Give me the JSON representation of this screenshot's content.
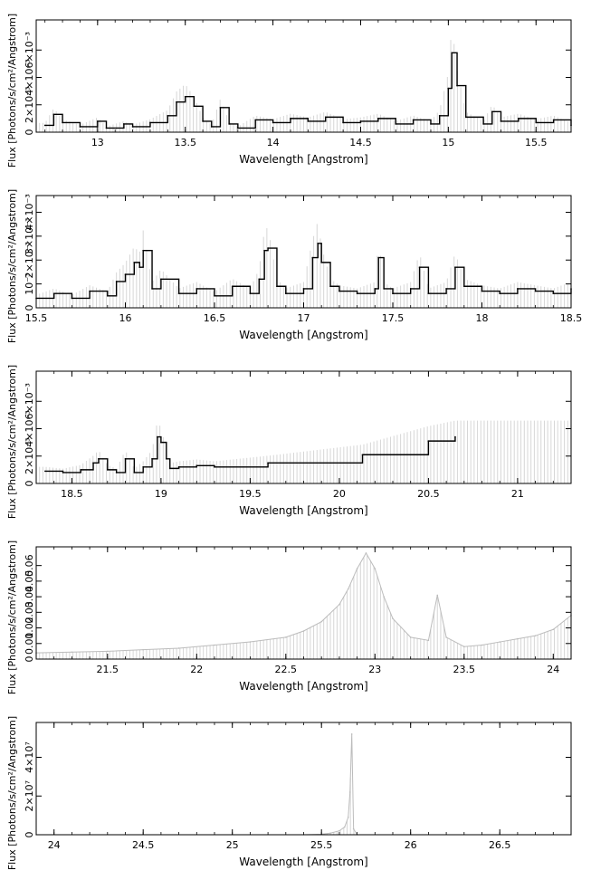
{
  "chart_data": [
    {
      "type": "line",
      "xlabel": "Wavelength [Angstrom]",
      "ylabel": "Flux [Photons/s/cm²/Angstrom]",
      "xlim": [
        12.65,
        15.7
      ],
      "ylim": [
        0,
        0.0082
      ],
      "xticks": [
        13,
        13.5,
        14,
        14.5,
        15,
        15.5
      ],
      "xtick_labels": [
        "13",
        "13.5",
        "14",
        "14.5",
        "15",
        "15.5"
      ],
      "yticks": [
        0,
        0.002,
        0.004,
        0.006
      ],
      "ytick_labels": [
        "0",
        "2×10⁻³",
        "4×10⁻³",
        "6×10⁻³"
      ],
      "series": [
        {
          "x": [
            12.7,
            12.75,
            12.8,
            12.9,
            13.0,
            13.05,
            13.15,
            13.2,
            13.3,
            13.4,
            13.45,
            13.5,
            13.55,
            13.6,
            13.65,
            13.7,
            13.75,
            13.8,
            13.9,
            14.0,
            14.1,
            14.2,
            14.3,
            14.4,
            14.5,
            14.6,
            14.7,
            14.8,
            14.9,
            14.95,
            15.0,
            15.02,
            15.05,
            15.1,
            15.2,
            15.25,
            15.3,
            15.4,
            15.5,
            15.6,
            15.7
          ],
          "y": [
            0.0005,
            0.0013,
            0.0007,
            0.0004,
            0.0008,
            0.0003,
            0.0006,
            0.0004,
            0.0007,
            0.0012,
            0.0022,
            0.0026,
            0.0019,
            0.0008,
            0.0004,
            0.0018,
            0.0006,
            0.0003,
            0.0009,
            0.0007,
            0.001,
            0.0008,
            0.0011,
            0.0007,
            0.0008,
            0.001,
            0.0006,
            0.0009,
            0.0006,
            0.0012,
            0.0032,
            0.0058,
            0.0034,
            0.0011,
            0.0006,
            0.0015,
            0.0008,
            0.001,
            0.0007,
            0.0009,
            0.0005
          ]
        }
      ]
    },
    {
      "type": "line",
      "xlabel": "Wavelength [Angstrom]",
      "ylabel": "Flux [Photons/s/cm²/Angstrom]",
      "xlim": [
        15.5,
        18.5
      ],
      "ylim": [
        0,
        0.0047
      ],
      "xticks": [
        15.5,
        16,
        16.5,
        17,
        17.5,
        18,
        18.5
      ],
      "xtick_labels": [
        "15.5",
        "16",
        "16.5",
        "17",
        "17.5",
        "18",
        "18.5"
      ],
      "yticks": [
        0,
        0.001,
        0.002,
        0.003,
        0.004
      ],
      "ytick_labels": [
        "0",
        "10⁻³",
        "2×10⁻³",
        "3×10⁻³",
        "4×10⁻³"
      ],
      "series": [
        {
          "x": [
            15.5,
            15.6,
            15.7,
            15.8,
            15.9,
            15.95,
            16.0,
            16.05,
            16.08,
            16.1,
            16.15,
            16.2,
            16.3,
            16.4,
            16.5,
            16.6,
            16.7,
            16.75,
            16.78,
            16.8,
            16.85,
            16.9,
            17.0,
            17.05,
            17.08,
            17.1,
            17.15,
            17.2,
            17.3,
            17.4,
            17.42,
            17.45,
            17.5,
            17.6,
            17.65,
            17.7,
            17.8,
            17.85,
            17.9,
            18.0,
            18.1,
            18.2,
            18.3,
            18.4,
            18.5
          ],
          "y": [
            0.0004,
            0.0006,
            0.0004,
            0.0007,
            0.0005,
            0.0011,
            0.0014,
            0.0019,
            0.0017,
            0.0024,
            0.0008,
            0.0012,
            0.0006,
            0.0008,
            0.0005,
            0.0009,
            0.0006,
            0.0012,
            0.0024,
            0.0025,
            0.0009,
            0.0006,
            0.0008,
            0.0021,
            0.0027,
            0.0019,
            0.0009,
            0.0007,
            0.0006,
            0.0008,
            0.0021,
            0.0008,
            0.0006,
            0.0008,
            0.0017,
            0.0006,
            0.0008,
            0.0017,
            0.0009,
            0.0007,
            0.0006,
            0.0008,
            0.0007,
            0.0006,
            0.0008
          ]
        }
      ]
    },
    {
      "type": "line",
      "xlabel": "Wavelength [Angstrom]",
      "ylabel": "Flux [Photons/s/cm²/Angstrom]",
      "xlim": [
        18.3,
        21.3
      ],
      "ylim": [
        0,
        0.0082
      ],
      "xticks": [
        18.5,
        19,
        19.5,
        20,
        20.5,
        21
      ],
      "xtick_labels": [
        "18.5",
        "19",
        "19.5",
        "20",
        "20.5",
        "21"
      ],
      "yticks": [
        0,
        0.002,
        0.004,
        0.006
      ],
      "ytick_labels": [
        "0",
        "2×10⁻³",
        "4×10⁻³",
        "6×10⁻³"
      ],
      "series": [
        {
          "x": [
            18.35,
            18.45,
            18.55,
            18.62,
            18.65,
            18.7,
            18.75,
            18.8,
            18.85,
            18.9,
            18.95,
            18.98,
            19.0,
            19.03,
            19.05,
            19.1,
            19.2,
            19.3,
            19.6,
            20.13,
            20.5,
            20.65
          ],
          "y": [
            0.0009,
            0.0008,
            0.001,
            0.0015,
            0.0018,
            0.001,
            0.0008,
            0.0018,
            0.0008,
            0.0012,
            0.0018,
            0.0034,
            0.003,
            0.0018,
            0.0011,
            0.0012,
            0.0013,
            0.0012,
            0.0015,
            0.0021,
            0.0031,
            0.0034
          ]
        }
      ]
    },
    {
      "type": "area",
      "xlabel": "Wavelength [Angstrom]",
      "ylabel": "Flux [Photons/s/cm²/Angstrom]",
      "xlim": [
        21.1,
        24.1
      ],
      "ylim": [
        0,
        0.072
      ],
      "xticks": [
        21.5,
        22,
        22.5,
        23,
        23.5,
        24
      ],
      "xtick_labels": [
        "21.5",
        "22",
        "22.5",
        "23",
        "23.5",
        "24"
      ],
      "yticks": [
        0,
        0.01,
        0.02,
        0.03,
        0.04,
        0.05,
        0.06
      ],
      "ytick_labels": [
        "0",
        "0.01",
        "0.02",
        "0.03",
        "0.04",
        "0.05",
        "0.06"
      ],
      "series": [
        {
          "x": [
            21.1,
            21.3,
            21.5,
            21.7,
            21.9,
            22.1,
            22.3,
            22.5,
            22.6,
            22.7,
            22.8,
            22.85,
            22.9,
            22.95,
            23.0,
            23.05,
            23.1,
            23.2,
            23.3,
            23.35,
            23.4,
            23.5,
            23.6,
            23.7,
            23.8,
            23.9,
            24.0,
            24.1
          ],
          "y": [
            0.004,
            0.0045,
            0.005,
            0.006,
            0.007,
            0.009,
            0.011,
            0.014,
            0.018,
            0.024,
            0.035,
            0.045,
            0.058,
            0.068,
            0.058,
            0.04,
            0.026,
            0.014,
            0.012,
            0.041,
            0.014,
            0.008,
            0.009,
            0.011,
            0.013,
            0.015,
            0.019,
            0.028
          ]
        }
      ]
    },
    {
      "type": "area",
      "xlabel": "Wavelength [Angstrom]",
      "ylabel": "Flux [Photons/s/cm²/Angstrom]",
      "xlim": [
        23.9,
        26.9
      ],
      "ylim": [
        0,
        58000000
      ],
      "xticks": [
        24,
        24.5,
        25,
        25.5,
        26,
        26.5
      ],
      "xtick_labels": [
        "24",
        "24.5",
        "25",
        "25.5",
        "26",
        "26.5"
      ],
      "yticks": [
        0,
        20000000,
        40000000
      ],
      "ytick_labels": [
        "0",
        "2×10⁷",
        "4×10⁷"
      ],
      "series": [
        {
          "x": [
            23.9,
            25.4,
            25.5,
            25.55,
            25.6,
            25.63,
            25.65,
            25.66,
            25.67,
            25.68,
            25.7,
            26.9
          ],
          "y": [
            0,
            0,
            300000,
            800000,
            2000000,
            4000000,
            9000000,
            22000000,
            52000000,
            3000000,
            0,
            0
          ]
        }
      ]
    }
  ]
}
